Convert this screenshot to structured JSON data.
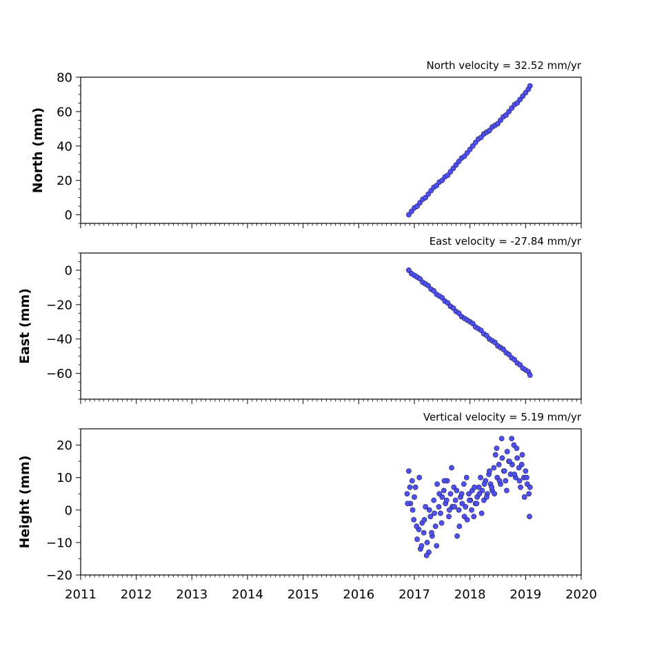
{
  "colors": {
    "marker_fill": "#5050f8",
    "marker_edge": "#1a1a40",
    "axis": "#000000",
    "background": "#ffffff"
  },
  "chart_data": [
    {
      "type": "scatter",
      "title": "North velocity = 32.52 mm/yr",
      "xlabel": "",
      "ylabel": "North (mm)",
      "xlim": [
        2011,
        2020
      ],
      "ylim": [
        -5,
        80
      ],
      "yticks": [
        0,
        20,
        40,
        60,
        80
      ],
      "xticks": [
        2011,
        2012,
        2013,
        2014,
        2015,
        2016,
        2017,
        2018,
        2019,
        2020
      ],
      "xtick_labels_visible": false,
      "grid": false,
      "series": [
        {
          "x": [
            2016.9,
            2016.95,
            2017.0,
            2017.05,
            2017.1,
            2017.15,
            2017.2,
            2017.25,
            2017.3,
            2017.35,
            2017.4,
            2017.45,
            2017.5,
            2017.55,
            2017.6,
            2017.65,
            2017.7,
            2017.75,
            2017.8,
            2017.85,
            2017.9,
            2017.95,
            2018.0,
            2018.05,
            2018.1,
            2018.15,
            2018.2,
            2018.25,
            2018.3,
            2018.35,
            2018.4,
            2018.45,
            2018.5,
            2018.55,
            2018.6,
            2018.65,
            2018.7,
            2018.75,
            2018.8,
            2018.85,
            2018.9,
            2018.95,
            2019.0,
            2019.05,
            2019.08
          ],
          "y": [
            0,
            2,
            4,
            5,
            7,
            9,
            10,
            12,
            14,
            16,
            17,
            19,
            20,
            22,
            23,
            25,
            27,
            29,
            31,
            33,
            34,
            36,
            38,
            40,
            42,
            44,
            45,
            47,
            48,
            49,
            51,
            52,
            53,
            55,
            57,
            58,
            60,
            62,
            64,
            65,
            67,
            69,
            71,
            73,
            75
          ]
        }
      ]
    },
    {
      "type": "scatter",
      "title": "East velocity = -27.84 mm/yr",
      "xlabel": "",
      "ylabel": "East (mm)",
      "xlim": [
        2011,
        2020
      ],
      "ylim": [
        -75,
        10
      ],
      "yticks": [
        0,
        -20,
        -40,
        -60
      ],
      "xticks": [
        2011,
        2012,
        2013,
        2014,
        2015,
        2016,
        2017,
        2018,
        2019,
        2020
      ],
      "xtick_labels_visible": false,
      "grid": false,
      "series": [
        {
          "x": [
            2016.9,
            2016.95,
            2017.0,
            2017.05,
            2017.1,
            2017.15,
            2017.2,
            2017.25,
            2017.3,
            2017.35,
            2017.4,
            2017.45,
            2017.5,
            2017.55,
            2017.6,
            2017.65,
            2017.7,
            2017.75,
            2017.8,
            2017.85,
            2017.9,
            2017.95,
            2018.0,
            2018.05,
            2018.1,
            2018.15,
            2018.2,
            2018.25,
            2018.3,
            2018.35,
            2018.4,
            2018.45,
            2018.5,
            2018.55,
            2018.6,
            2018.65,
            2018.7,
            2018.75,
            2018.8,
            2018.85,
            2018.9,
            2018.95,
            2019.0,
            2019.05,
            2019.08
          ],
          "y": [
            0,
            -2,
            -3,
            -4,
            -5,
            -7,
            -8,
            -9,
            -11,
            -12,
            -14,
            -15,
            -16,
            -18,
            -19,
            -21,
            -22,
            -24,
            -25,
            -27,
            -28,
            -29,
            -30,
            -31,
            -33,
            -34,
            -35,
            -37,
            -38,
            -40,
            -41,
            -42,
            -44,
            -45,
            -46,
            -48,
            -49,
            -51,
            -52,
            -54,
            -55,
            -57,
            -58,
            -59,
            -61
          ]
        }
      ]
    },
    {
      "type": "scatter",
      "title": "Vertical velocity = 5.19 mm/yr",
      "xlabel": "",
      "ylabel": "Height (mm)",
      "xlim": [
        2011,
        2020
      ],
      "ylim": [
        -20,
        25
      ],
      "yticks": [
        20,
        10,
        0,
        -10,
        -20
      ],
      "xticks": [
        2011,
        2012,
        2013,
        2014,
        2015,
        2016,
        2017,
        2018,
        2019,
        2020
      ],
      "xtick_labels": [
        "2011",
        "2012",
        "2013",
        "2014",
        "2015",
        "2016",
        "2017",
        "2018",
        "2019",
        "2020"
      ],
      "xtick_labels_visible": true,
      "grid": false,
      "series": [
        {
          "x": [
            2016.87,
            2016.9,
            2016.93,
            2016.96,
            2016.99,
            2017.02,
            2017.05,
            2017.08,
            2017.11,
            2017.14,
            2017.17,
            2017.2,
            2017.23,
            2017.26,
            2017.29,
            2017.32,
            2017.35,
            2017.38,
            2017.41,
            2017.44,
            2017.47,
            2017.5,
            2017.53,
            2017.56,
            2017.59,
            2017.62,
            2017.65,
            2017.68,
            2017.71,
            2017.74,
            2017.77,
            2017.8,
            2017.83,
            2017.86,
            2017.89,
            2017.92,
            2017.95,
            2017.98,
            2018.01,
            2018.04,
            2018.07,
            2018.1,
            2018.13,
            2018.16,
            2018.19,
            2018.22,
            2018.25,
            2018.28,
            2018.31,
            2018.34,
            2018.37,
            2018.4,
            2018.43,
            2018.46,
            2018.49,
            2018.52,
            2018.55,
            2018.58,
            2018.61,
            2018.64,
            2018.67,
            2018.7,
            2018.73,
            2018.76,
            2018.79,
            2018.82,
            2018.85,
            2018.88,
            2018.91,
            2018.94,
            2018.97,
            2019.0,
            2019.03,
            2019.06,
            2019.08,
            2016.88,
            2016.92,
            2016.97,
            2017.0,
            2017.04,
            2017.09,
            2017.13,
            2017.18,
            2017.22,
            2017.27,
            2017.31,
            2017.36,
            2017.4,
            2017.45,
            2017.49,
            2017.54,
            2017.58,
            2017.63,
            2017.67,
            2017.72,
            2017.76,
            2017.81,
            2017.85,
            2017.9,
            2017.94,
            2017.99,
            2018.03,
            2018.08,
            2018.12,
            2018.17,
            2018.21,
            2018.26,
            2018.3,
            2018.35,
            2018.39,
            2018.44,
            2018.48,
            2018.53,
            2018.57,
            2018.62,
            2018.66,
            2018.71,
            2018.75,
            2018.8,
            2018.84,
            2018.89,
            2018.93,
            2018.98,
            2019.02,
            2019.07
          ],
          "y": [
            5,
            12,
            2,
            9,
            -3,
            7,
            -9,
            -6,
            -12,
            -4,
            -7,
            1,
            -10,
            -13,
            -2,
            -8,
            3,
            -5,
            8,
            1,
            -1,
            4,
            6,
            2,
            9,
            -2,
            5,
            1,
            7,
            3,
            -8,
            0,
            4,
            2,
            8,
            1,
            -3,
            5,
            3,
            6,
            -2,
            2,
            4,
            7,
            10,
            6,
            3,
            9,
            5,
            11,
            8,
            6,
            13,
            17,
            10,
            14,
            8,
            16,
            12,
            9,
            18,
            15,
            11,
            14,
            20,
            10,
            16,
            13,
            7,
            17,
            10,
            12,
            8,
            5,
            7,
            2,
            7,
            0,
            4,
            -5,
            10,
            -11,
            -3,
            -14,
            0,
            -7,
            -1,
            -11,
            5,
            -4,
            9,
            3,
            0,
            13,
            1,
            6,
            -5,
            5,
            -2,
            10,
            3,
            0,
            7,
            2,
            5,
            -1,
            8,
            4,
            12,
            7,
            5,
            19,
            9,
            22,
            12,
            6,
            15,
            22,
            11,
            19,
            9,
            14,
            4,
            10,
            -2
          ]
        }
      ]
    }
  ]
}
